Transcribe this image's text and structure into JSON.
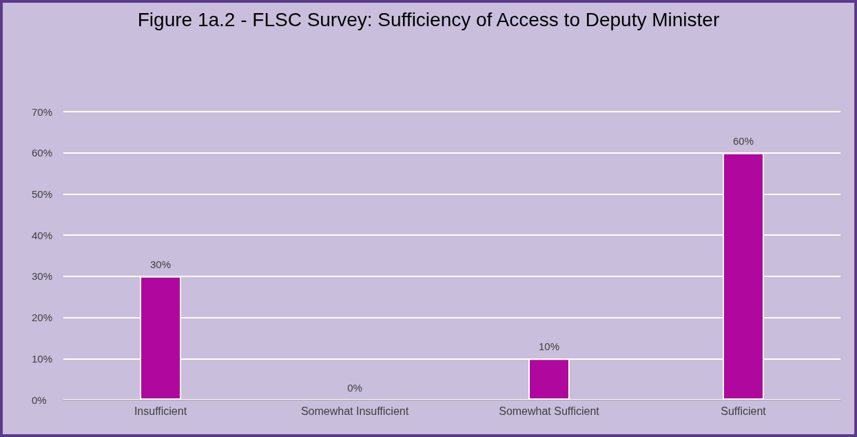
{
  "chart_data": {
    "type": "bar",
    "title": "Figure 1a.2 - FLSC Survey: Sufficiency of Access to Deputy Minister",
    "categories": [
      "Insufficient",
      "Somewhat Insufficient",
      "Somewhat Sufficient",
      "Sufficient"
    ],
    "values": [
      30,
      0,
      10,
      60
    ],
    "color": "#b0079e",
    "value_labels": [
      "30%",
      "0%",
      "10%",
      "60%"
    ],
    "ylim": [
      0,
      70
    ],
    "yticks": [
      {
        "value": 0,
        "label": "0%"
      },
      {
        "value": 10,
        "label": "10%"
      },
      {
        "value": 20,
        "label": "20%"
      },
      {
        "value": 30,
        "label": "30%"
      },
      {
        "value": 40,
        "label": "40%"
      },
      {
        "value": 50,
        "label": "50%"
      },
      {
        "value": 60,
        "label": "60%"
      },
      {
        "value": 70,
        "label": "70%"
      }
    ],
    "grid": "y"
  }
}
